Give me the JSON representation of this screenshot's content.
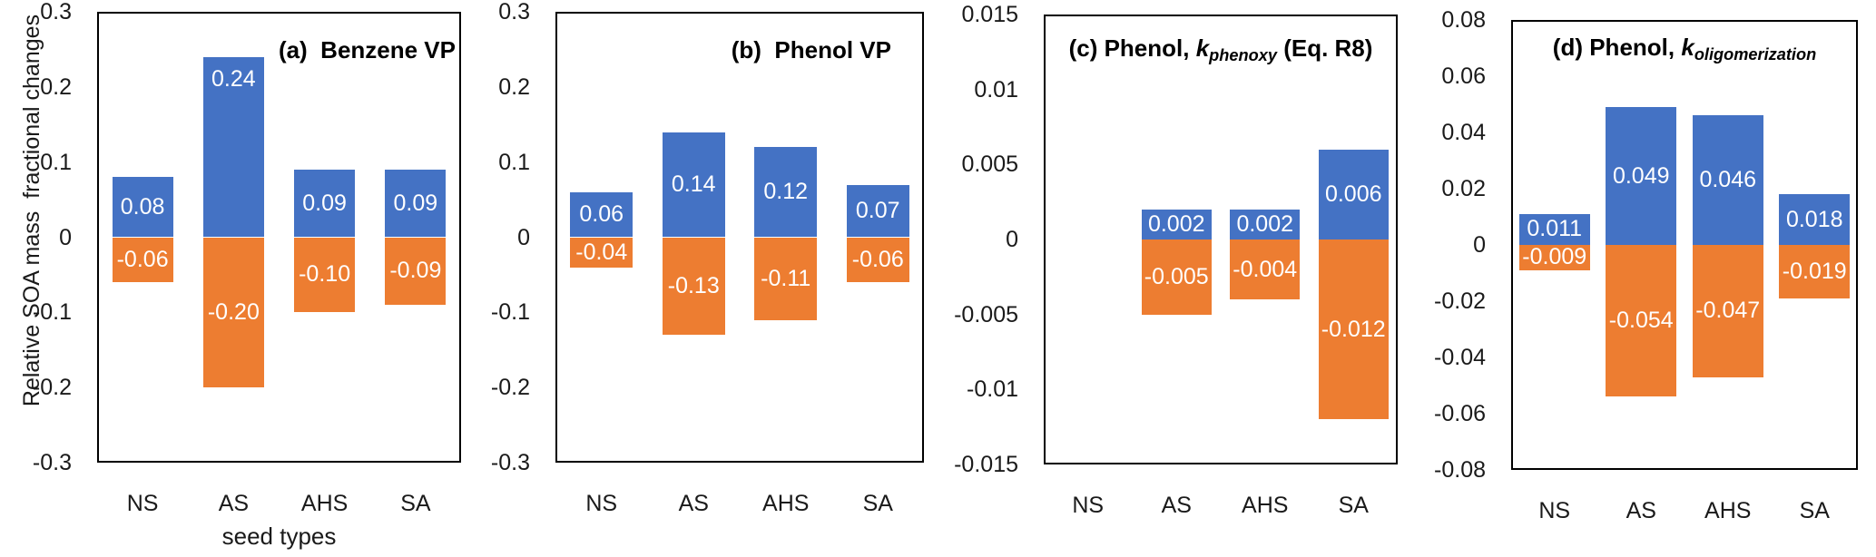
{
  "figure": {
    "y_axis_label": "Relative SOA mass  fractional changes",
    "x_axis_label": "seed types",
    "colors": {
      "increase": "#4472C4",
      "decrease": "#ED7D31",
      "axis": "#000000",
      "background": "#FFFFFF",
      "bar_label_text": "#FFFFFF"
    }
  },
  "chart_data": [
    {
      "type": "bar",
      "panel": "a",
      "title": {
        "pre": "(a)  Benzene VP",
        "k": "",
        "sub": "",
        "post": ""
      },
      "title_align": "right",
      "categories": [
        "NS",
        "AS",
        "AHS",
        "SA"
      ],
      "series": [
        {
          "name": "increase",
          "values": [
            0.08,
            0.24,
            0.09,
            0.09
          ],
          "labels": [
            "0.08",
            "0.24",
            "0.09",
            "0.09"
          ]
        },
        {
          "name": "decrease",
          "values": [
            -0.06,
            -0.2,
            -0.1,
            -0.09
          ],
          "labels": [
            "-0.06",
            "-0.20",
            "-0.10",
            "-0.09"
          ]
        }
      ],
      "label_va_increase": [
        "center",
        "top",
        "center",
        "center"
      ],
      "ylim": [
        -0.3,
        0.3
      ],
      "yticks": [
        "0.3",
        "0.2",
        "0.1",
        "0",
        "-0.1",
        "-0.2",
        "-0.3"
      ],
      "grid": false,
      "legend": "none"
    },
    {
      "type": "bar",
      "panel": "b",
      "title": {
        "pre": "(b)  Phenol VP",
        "k": "",
        "sub": "",
        "post": ""
      },
      "title_align": "right",
      "categories": [
        "NS",
        "AS",
        "AHS",
        "SA"
      ],
      "series": [
        {
          "name": "increase",
          "values": [
            0.06,
            0.14,
            0.12,
            0.07
          ],
          "labels": [
            "0.06",
            "0.14",
            "0.12",
            "0.07"
          ]
        },
        {
          "name": "decrease",
          "values": [
            -0.04,
            -0.13,
            -0.11,
            -0.06
          ],
          "labels": [
            "-0.04",
            "-0.13",
            "-0.11",
            "-0.06"
          ]
        }
      ],
      "label_va_increase": [
        "center",
        "center",
        "center",
        "center"
      ],
      "ylim": [
        -0.3,
        0.3
      ],
      "yticks": [
        "0.3",
        "0.2",
        "0.1",
        "0",
        "-0.1",
        "-0.2",
        "-0.3"
      ],
      "grid": false,
      "legend": "none"
    },
    {
      "type": "bar",
      "panel": "c",
      "title": {
        "pre": "(c) Phenol, ",
        "k": "k",
        "sub": "phenoxy",
        "post": " (Eq. R8)"
      },
      "title_align": "center",
      "categories": [
        "NS",
        "AS",
        "AHS",
        "SA"
      ],
      "series": [
        {
          "name": "increase",
          "values": [
            0,
            0.002,
            0.002,
            0.006
          ],
          "labels": [
            "",
            "0.002",
            "0.002",
            "0.006"
          ]
        },
        {
          "name": "decrease",
          "values": [
            0,
            -0.005,
            -0.004,
            -0.012
          ],
          "labels": [
            "",
            "-0.005",
            "-0.004",
            "-0.012"
          ]
        }
      ],
      "label_va_increase": [
        "center",
        "center",
        "center",
        "center"
      ],
      "ylim": [
        -0.015,
        0.015
      ],
      "yticks": [
        "0.015",
        "0.01",
        "0.005",
        "0",
        "-0.005",
        "-0.01",
        "-0.015"
      ],
      "grid": false,
      "legend": "none"
    },
    {
      "type": "bar",
      "panel": "d",
      "title": {
        "pre": "(d) Phenol, ",
        "k": "k",
        "sub": "oligomerization",
        "post": ""
      },
      "title_align": "center",
      "categories": [
        "NS",
        "AS",
        "AHS",
        "SA"
      ],
      "series": [
        {
          "name": "increase",
          "values": [
            0.011,
            0.049,
            0.046,
            0.018
          ],
          "labels": [
            "0.011",
            "0.049",
            "0.046",
            "0.018"
          ]
        },
        {
          "name": "decrease",
          "values": [
            -0.009,
            -0.054,
            -0.047,
            -0.019
          ],
          "labels": [
            "-0.009",
            "-0.054",
            "-0.047",
            "-0.019"
          ]
        }
      ],
      "label_va_increase": [
        "center",
        "center",
        "center",
        "center"
      ],
      "ylim": [
        -0.08,
        0.08
      ],
      "yticks": [
        "0.08",
        "0.06",
        "0.04",
        "0.02",
        "0",
        "-0.02",
        "-0.04",
        "-0.06",
        "-0.08"
      ],
      "grid": false,
      "legend": "none"
    }
  ]
}
